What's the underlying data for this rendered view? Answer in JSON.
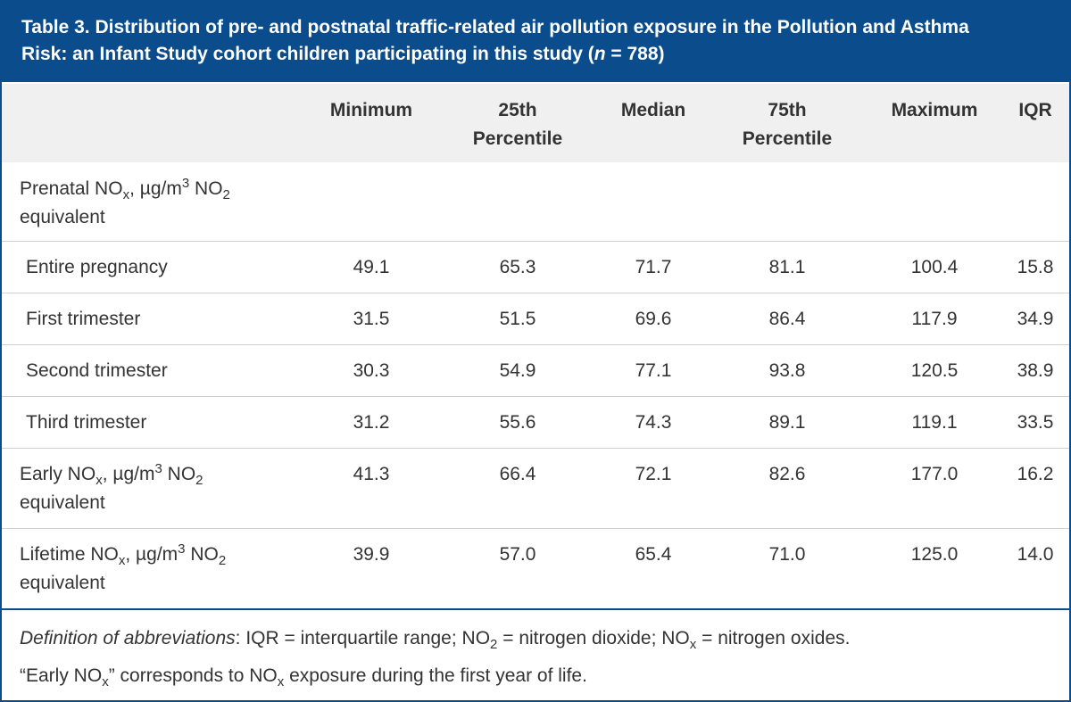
{
  "title": {
    "line1": "Table 3. Distribution of pre- and postnatal traffic-related air pollution exposure in the Pollution and Asthma",
    "line2_prefix": "Risk: an Infant Study cohort children participating in this study (",
    "line2_n": "n",
    "line2_suffix": " = 788)"
  },
  "columns": [
    {
      "line1": "Minimum",
      "line2": ""
    },
    {
      "line1": "25th",
      "line2": "Percentile"
    },
    {
      "line1": "Median",
      "line2": ""
    },
    {
      "line1": "75th",
      "line2": "Percentile"
    },
    {
      "line1": "Maximum",
      "line2": ""
    },
    {
      "line1": "IQR",
      "line2": ""
    }
  ],
  "section_prenatal": {
    "a": "Prenatal NO",
    "sub1": "x",
    "b": ", µg/m",
    "sup": "3",
    "c": " NO",
    "sub2": "2",
    "d": "equivalent"
  },
  "rows": [
    {
      "label": "Entire pregnancy",
      "values": [
        "49.1",
        "65.3",
        "71.7",
        "81.1",
        "100.4",
        "15.8"
      ]
    },
    {
      "label": "First trimester",
      "values": [
        "31.5",
        "51.5",
        "69.6",
        "86.4",
        "117.9",
        "34.9"
      ]
    },
    {
      "label": "Second trimester",
      "values": [
        "30.3",
        "54.9",
        "77.1",
        "93.8",
        "120.5",
        "38.9"
      ]
    },
    {
      "label": "Third trimester",
      "values": [
        "31.2",
        "55.6",
        "74.3",
        "89.1",
        "119.1",
        "33.5"
      ]
    }
  ],
  "row_early": {
    "a": "Early NO",
    "sub1": "x",
    "b": ", µg/m",
    "sup": "3",
    "c": " NO",
    "sub2": "2",
    "d": "equivalent",
    "values": [
      "41.3",
      "66.4",
      "72.1",
      "82.6",
      "177.0",
      "16.2"
    ]
  },
  "row_lifetime": {
    "a": "Lifetime NO",
    "sub1": "x",
    "b": ", µg/m",
    "sup": "3",
    "c": " NO",
    "sub2": "2",
    "d": "equivalent",
    "values": [
      "39.9",
      "57.0",
      "65.4",
      "71.0",
      "125.0",
      "14.0"
    ]
  },
  "footnotes": {
    "f1_em": "Definition of abbreviations",
    "f1_a": ": IQR = interquartile range; NO",
    "f1_sub1": "2",
    "f1_b": " = nitrogen dioxide; NO",
    "f1_sub2": "x",
    "f1_c": " = nitrogen oxides.",
    "f2_a": "“Early NO",
    "f2_sub1": "x",
    "f2_b": "” corresponds to NO",
    "f2_sub2": "x",
    "f2_c": " exposure during the first year of life."
  },
  "colors": {
    "header_bg": "#0a4c8c",
    "thead_bg": "#f0f0f0",
    "text": "#333333"
  }
}
